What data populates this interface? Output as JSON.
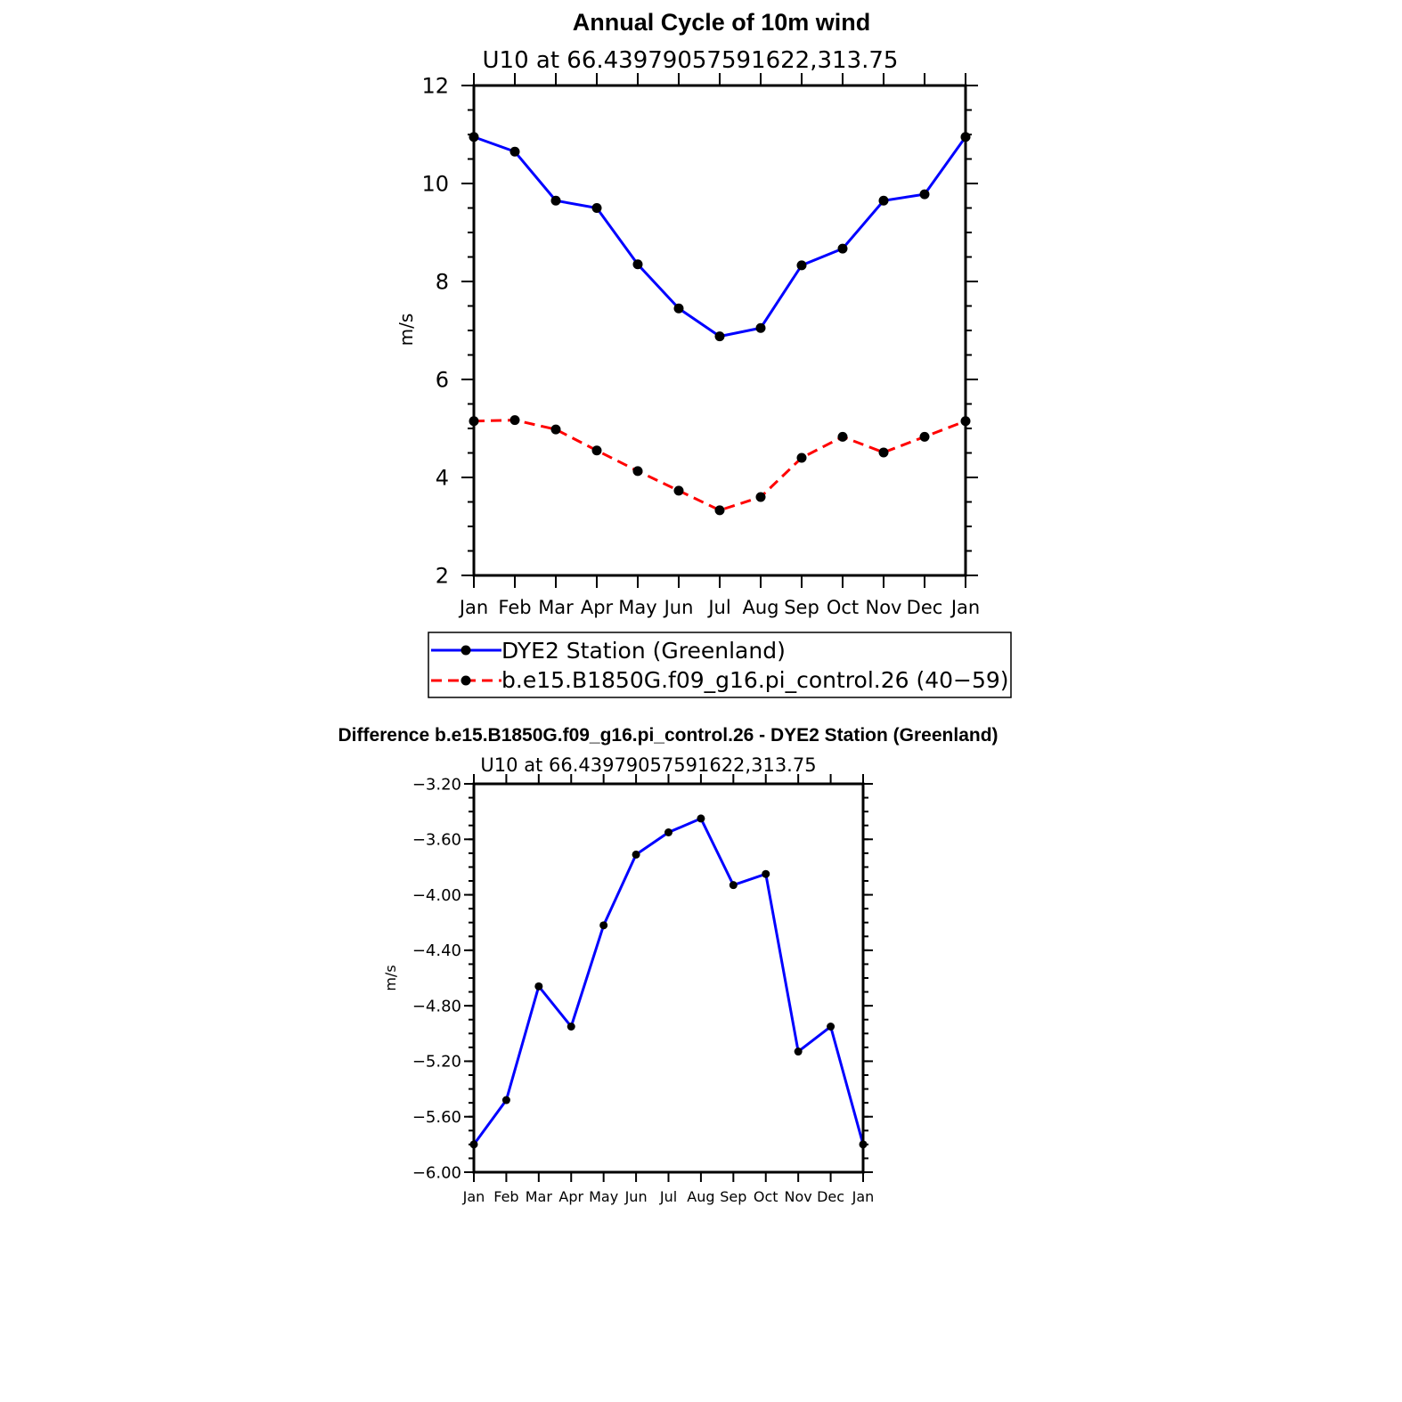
{
  "chart_data": [
    {
      "type": "line",
      "title": "Annual Cycle of 10m wind",
      "subtitle": "U10 at 66.43979057591622,313.75",
      "ylabel": "m/s",
      "xlabel": "",
      "categories": [
        "Jan",
        "Feb",
        "Mar",
        "Apr",
        "May",
        "Jun",
        "Jul",
        "Aug",
        "Sep",
        "Oct",
        "Nov",
        "Dec",
        "Jan"
      ],
      "ylim": [
        2,
        12
      ],
      "yticks": [
        "2",
        "4",
        "6",
        "8",
        "10",
        "12"
      ],
      "ytick_values": [
        2,
        4,
        6,
        8,
        10,
        12
      ],
      "series": [
        {
          "name": "DYE2 Station (Greenland)",
          "color": "#0000ff",
          "dash": "solid",
          "values": [
            10.95,
            10.65,
            9.65,
            9.5,
            8.35,
            7.45,
            6.88,
            7.05,
            8.33,
            8.67,
            9.65,
            9.78,
            10.95
          ]
        },
        {
          "name": "b.e15.B1850G.f09_g16.pi_control.26 (40−59)",
          "color": "#ff0000",
          "dash": "dashed",
          "values": [
            5.15,
            5.17,
            4.98,
            4.55,
            4.13,
            3.73,
            3.33,
            3.6,
            4.4,
            4.83,
            4.51,
            4.83,
            5.15
          ]
        }
      ],
      "legend": "below",
      "grid": false
    },
    {
      "type": "line",
      "title": "Difference b.e15.B1850G.f09_g16.pi_control.26 - DYE2 Station (Greenland)",
      "subtitle": "U10 at 66.43979057591622,313.75",
      "ylabel": "m/s",
      "xlabel": "",
      "categories": [
        "Jan",
        "Feb",
        "Mar",
        "Apr",
        "May",
        "Jun",
        "Jul",
        "Aug",
        "Sep",
        "Oct",
        "Nov",
        "Dec",
        "Jan"
      ],
      "ylim": [
        -6.0,
        -3.2
      ],
      "yticks": [
        "−6.00",
        "−5.60",
        "−5.20",
        "−4.80",
        "−4.40",
        "−4.00",
        "−3.60",
        "−3.20"
      ],
      "ytick_values": [
        -6.0,
        -5.6,
        -5.2,
        -4.8,
        -4.4,
        -4.0,
        -3.6,
        -3.2
      ],
      "series": [
        {
          "color": "#0000ff",
          "dash": "solid",
          "values": [
            -5.8,
            -5.48,
            -4.66,
            -4.95,
            -4.22,
            -3.71,
            -3.55,
            -3.45,
            -3.93,
            -3.85,
            -5.13,
            -4.95,
            -5.8
          ]
        }
      ],
      "grid": false
    }
  ]
}
